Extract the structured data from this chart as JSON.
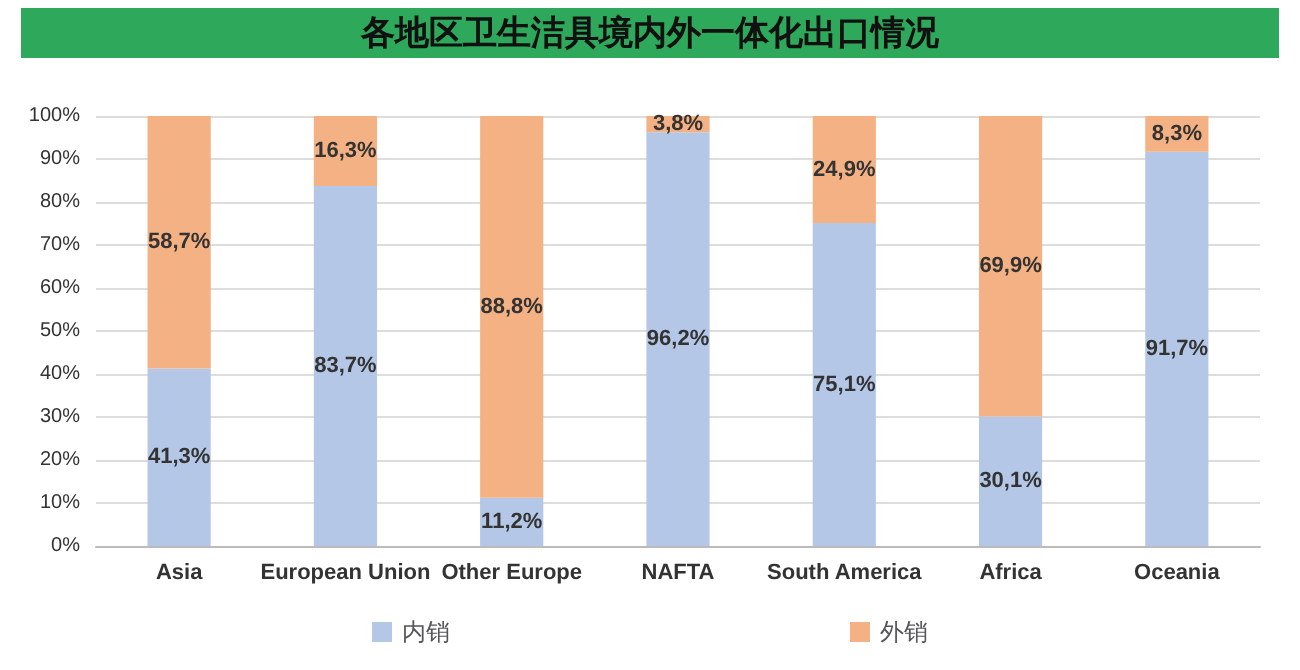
{
  "chart_data": {
    "type": "bar",
    "title": "各地区卫生洁具境内外一体化出口情况",
    "categories": [
      "Asia",
      "European Union",
      "Other Europe",
      "NAFTA",
      "South America",
      "Africa",
      "Oceania"
    ],
    "stacked": true,
    "series": [
      {
        "name": "内销",
        "color": "#b4c7e7",
        "values": [
          41.3,
          83.7,
          11.2,
          96.2,
          75.1,
          30.1,
          91.7
        ],
        "value_labels": [
          "41,3%",
          "83,7%",
          "11,2%",
          "96,2%",
          "75,1%",
          "30,1%",
          "91,7%"
        ]
      },
      {
        "name": "外销",
        "color": "#f4b183",
        "values": [
          58.7,
          16.3,
          88.8,
          3.8,
          24.9,
          69.9,
          8.3
        ],
        "value_labels": [
          "58,7%",
          "16,3%",
          "88,8%",
          "3,8%",
          "24,9%",
          "69,9%",
          "8,3%"
        ]
      }
    ],
    "ylim": [
      0,
      100
    ],
    "yticks": [
      {
        "value": 0,
        "label": "0%"
      },
      {
        "value": 10,
        "label": "10%"
      },
      {
        "value": 20,
        "label": "20%"
      },
      {
        "value": 30,
        "label": "30%"
      },
      {
        "value": 40,
        "label": "40%"
      },
      {
        "value": 50,
        "label": "50%"
      },
      {
        "value": 60,
        "label": "60%"
      },
      {
        "value": 70,
        "label": "70%"
      },
      {
        "value": 80,
        "label": "80%"
      },
      {
        "value": 90,
        "label": "90%"
      },
      {
        "value": 100,
        "label": "100%"
      }
    ],
    "grid": "y",
    "legend": "bottom"
  }
}
